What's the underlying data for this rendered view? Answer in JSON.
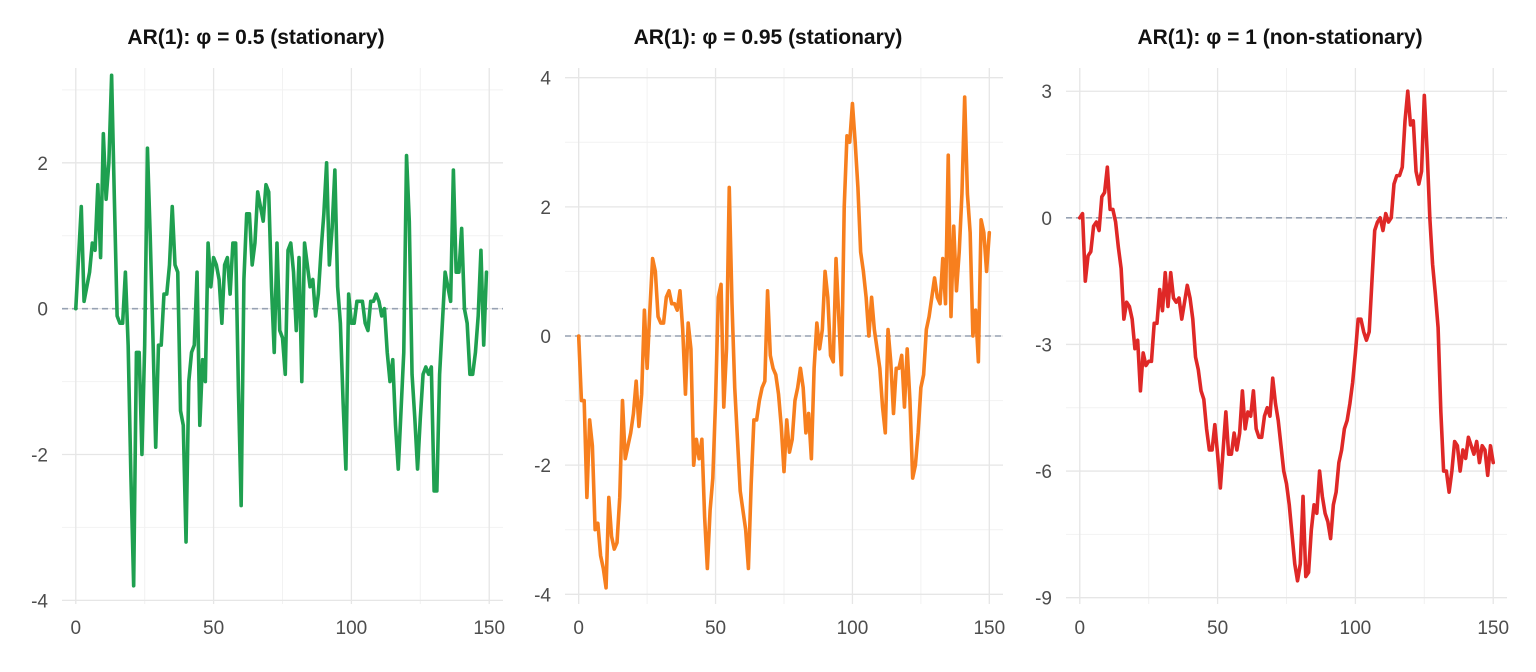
{
  "figure": {
    "panels": [
      {
        "title": "AR(1): φ = 0.5 (stationary)"
      },
      {
        "title": "AR(1): φ = 0.95 (stationary)"
      },
      {
        "title": "AR(1): φ = 1 (non-stationary)"
      }
    ]
  },
  "chart_data": [
    {
      "type": "line",
      "title": "AR(1): φ = 0.5 (stationary)",
      "xlabel": "",
      "ylabel": "",
      "xlim": [
        -5,
        155
      ],
      "ylim": [
        -4.05,
        3.3
      ],
      "x_ticks": [
        0,
        50,
        100,
        150
      ],
      "y_ticks": [
        -4,
        -2,
        0,
        2
      ],
      "y_tick_labels": [
        "-4",
        "-2",
        "0",
        "2"
      ],
      "grid": true,
      "reference_line": 0,
      "color": "#1fa050",
      "series": [
        {
          "values": [
            0.0,
            0.7,
            1.4,
            0.1,
            0.3,
            0.5,
            0.9,
            0.8,
            1.7,
            0.7,
            2.4,
            1.5,
            2.0,
            3.2,
            1.5,
            -0.1,
            -0.2,
            -0.2,
            0.5,
            -0.5,
            -2.3,
            -3.8,
            -0.6,
            -0.6,
            -2.0,
            -0.5,
            2.2,
            1.0,
            -0.4,
            -1.9,
            -0.5,
            -0.5,
            0.2,
            0.2,
            0.6,
            1.4,
            0.6,
            0.5,
            -1.4,
            -1.6,
            -3.2,
            -1.0,
            -0.6,
            -0.5,
            0.5,
            -1.6,
            -0.7,
            -1.0,
            0.9,
            0.3,
            0.7,
            0.6,
            0.4,
            -0.2,
            0.6,
            0.7,
            0.2,
            0.9,
            0.9,
            -1.1,
            -2.7,
            0.4,
            1.3,
            1.3,
            0.6,
            0.9,
            1.6,
            1.4,
            1.2,
            1.7,
            1.6,
            0.3,
            -0.6,
            0.9,
            -0.3,
            -0.4,
            -0.9,
            0.8,
            0.9,
            0.5,
            -0.3,
            0.7,
            -1.0,
            0.9,
            0.6,
            0.3,
            0.4,
            -0.1,
            0.2,
            0.8,
            1.3,
            2.0,
            0.6,
            1.1,
            1.9,
            0.3,
            -0.2,
            -1.3,
            -2.2,
            0.2,
            -0.2,
            -0.2,
            0.1,
            0.1,
            0.1,
            -0.2,
            -0.3,
            0.1,
            0.1,
            0.2,
            0.1,
            -0.1,
            0.0,
            -0.6,
            -1.0,
            -0.7,
            -1.6,
            -2.2,
            -1.4,
            -0.6,
            2.1,
            1.2,
            -0.9,
            -1.5,
            -2.2,
            -1.5,
            -0.9,
            -0.8,
            -0.9,
            -0.8,
            -2.5,
            -2.5,
            -0.9,
            -0.2,
            0.5,
            0.3,
            0.1,
            1.9,
            0.5,
            0.5,
            1.1,
            0.0,
            -0.2,
            -0.9,
            -0.9,
            -0.6,
            -0.1,
            0.8,
            -0.5,
            0.5
          ]
        }
      ]
    },
    {
      "type": "line",
      "title": "AR(1): φ = 0.95 (stationary)",
      "xlabel": "",
      "ylabel": "",
      "xlim": [
        -5,
        155
      ],
      "ylim": [
        -4.15,
        4.15
      ],
      "x_ticks": [
        0,
        50,
        100,
        150
      ],
      "y_ticks": [
        -4,
        -2,
        0,
        2,
        4
      ],
      "y_tick_labels": [
        "-4",
        "-2",
        "0",
        "2",
        "4"
      ],
      "grid": true,
      "reference_line": 0,
      "color": "#f77f1e",
      "series": [
        {
          "values": [
            0.0,
            -1.0,
            -1.0,
            -2.5,
            -1.3,
            -1.7,
            -3.0,
            -2.9,
            -3.4,
            -3.6,
            -3.9,
            -2.5,
            -3.1,
            -3.3,
            -3.2,
            -2.5,
            -1.0,
            -1.9,
            -1.7,
            -1.5,
            -1.2,
            -0.7,
            -1.4,
            -0.9,
            0.4,
            -0.5,
            0.4,
            1.2,
            1.0,
            0.3,
            0.2,
            0.2,
            0.6,
            0.7,
            0.5,
            0.5,
            0.4,
            0.7,
            0.1,
            -0.9,
            0.2,
            -0.2,
            -2.0,
            -1.6,
            -1.9,
            -1.6,
            -2.8,
            -3.6,
            -2.7,
            -2.2,
            -1.0,
            0.6,
            0.8,
            -1.1,
            -0.2,
            2.3,
            0.5,
            -0.8,
            -1.6,
            -2.4,
            -2.7,
            -3.0,
            -3.6,
            -2.3,
            -1.3,
            -1.3,
            -1.0,
            -0.8,
            -0.7,
            0.7,
            -0.3,
            -0.5,
            -0.6,
            -0.9,
            -1.4,
            -2.1,
            -1.3,
            -1.8,
            -1.6,
            -1.0,
            -0.8,
            -0.5,
            -0.8,
            -1.5,
            -1.2,
            -1.9,
            -0.5,
            0.2,
            -0.2,
            0.1,
            1.0,
            0.6,
            -0.3,
            -0.4,
            1.2,
            0.3,
            -0.6,
            2.0,
            3.1,
            3.0,
            3.6,
            3.0,
            2.3,
            1.3,
            1.0,
            0.6,
            0.0,
            0.6,
            0.1,
            -0.2,
            -0.5,
            -1.1,
            -1.5,
            0.1,
            -0.4,
            -1.2,
            -0.5,
            -0.5,
            -0.3,
            -1.1,
            -0.2,
            -1.0,
            -2.2,
            -2.0,
            -1.5,
            -0.8,
            -0.6,
            0.1,
            0.3,
            0.6,
            0.9,
            0.6,
            0.5,
            1.2,
            0.5,
            2.8,
            0.3,
            1.7,
            0.7,
            1.3,
            2.2,
            3.7,
            2.2,
            1.6,
            0.0,
            0.4,
            -0.4,
            1.8,
            1.6,
            1.0,
            1.6
          ]
        }
      ]
    },
    {
      "type": "line",
      "title": "AR(1): φ = 1 (non-stationary)",
      "xlabel": "",
      "ylabel": "",
      "xlim": [
        -5,
        155
      ],
      "ylim": [
        -9.15,
        3.55
      ],
      "x_ticks": [
        0,
        50,
        100,
        150
      ],
      "y_ticks": [
        -9,
        -6,
        -3,
        0,
        3
      ],
      "y_tick_labels": [
        "-9",
        "-6",
        "-3",
        "0",
        "3"
      ],
      "grid": true,
      "reference_line": 0,
      "color": "#df2827",
      "series": [
        {
          "values": [
            0.0,
            0.1,
            -1.5,
            -0.9,
            -0.8,
            -0.2,
            -0.1,
            -0.3,
            0.5,
            0.6,
            1.2,
            0.2,
            0.2,
            -0.1,
            -0.7,
            -1.2,
            -2.4,
            -2.0,
            -2.1,
            -2.4,
            -3.1,
            -2.9,
            -4.1,
            -3.2,
            -3.5,
            -3.4,
            -3.4,
            -2.5,
            -2.5,
            -1.7,
            -2.2,
            -1.3,
            -2.1,
            -1.3,
            -1.9,
            -2.0,
            -1.9,
            -2.4,
            -2.0,
            -1.6,
            -1.9,
            -2.4,
            -3.3,
            -3.6,
            -4.1,
            -4.3,
            -5.0,
            -5.5,
            -5.5,
            -4.9,
            -5.6,
            -6.4,
            -5.5,
            -4.6,
            -5.6,
            -5.6,
            -5.1,
            -5.5,
            -5.1,
            -4.1,
            -5.0,
            -4.6,
            -4.7,
            -4.1,
            -5.0,
            -5.2,
            -5.2,
            -4.7,
            -4.5,
            -4.7,
            -3.8,
            -4.4,
            -4.8,
            -5.4,
            -6.0,
            -6.3,
            -6.8,
            -7.5,
            -8.2,
            -8.6,
            -8.2,
            -6.6,
            -8.5,
            -8.4,
            -7.4,
            -6.8,
            -7.0,
            -6.0,
            -6.6,
            -7.0,
            -7.2,
            -7.6,
            -6.8,
            -6.5,
            -5.8,
            -5.5,
            -5.0,
            -4.8,
            -4.4,
            -3.9,
            -3.2,
            -2.4,
            -2.4,
            -2.7,
            -2.9,
            -2.7,
            -1.5,
            -0.3,
            -0.1,
            0.0,
            -0.3,
            0.1,
            -0.1,
            0.0,
            0.8,
            1.0,
            1.0,
            1.2,
            2.3,
            3.0,
            2.2,
            2.3,
            1.1,
            0.8,
            1.1,
            2.9,
            1.6,
            0.0,
            -1.1,
            -1.8,
            -2.6,
            -4.6,
            -6.0,
            -6.0,
            -6.5,
            -6.0,
            -5.3,
            -5.4,
            -6.0,
            -5.5,
            -5.7,
            -5.2,
            -5.4,
            -5.6,
            -5.3,
            -5.8,
            -5.4,
            -5.5,
            -6.1,
            -5.4,
            -5.8
          ]
        }
      ]
    }
  ]
}
